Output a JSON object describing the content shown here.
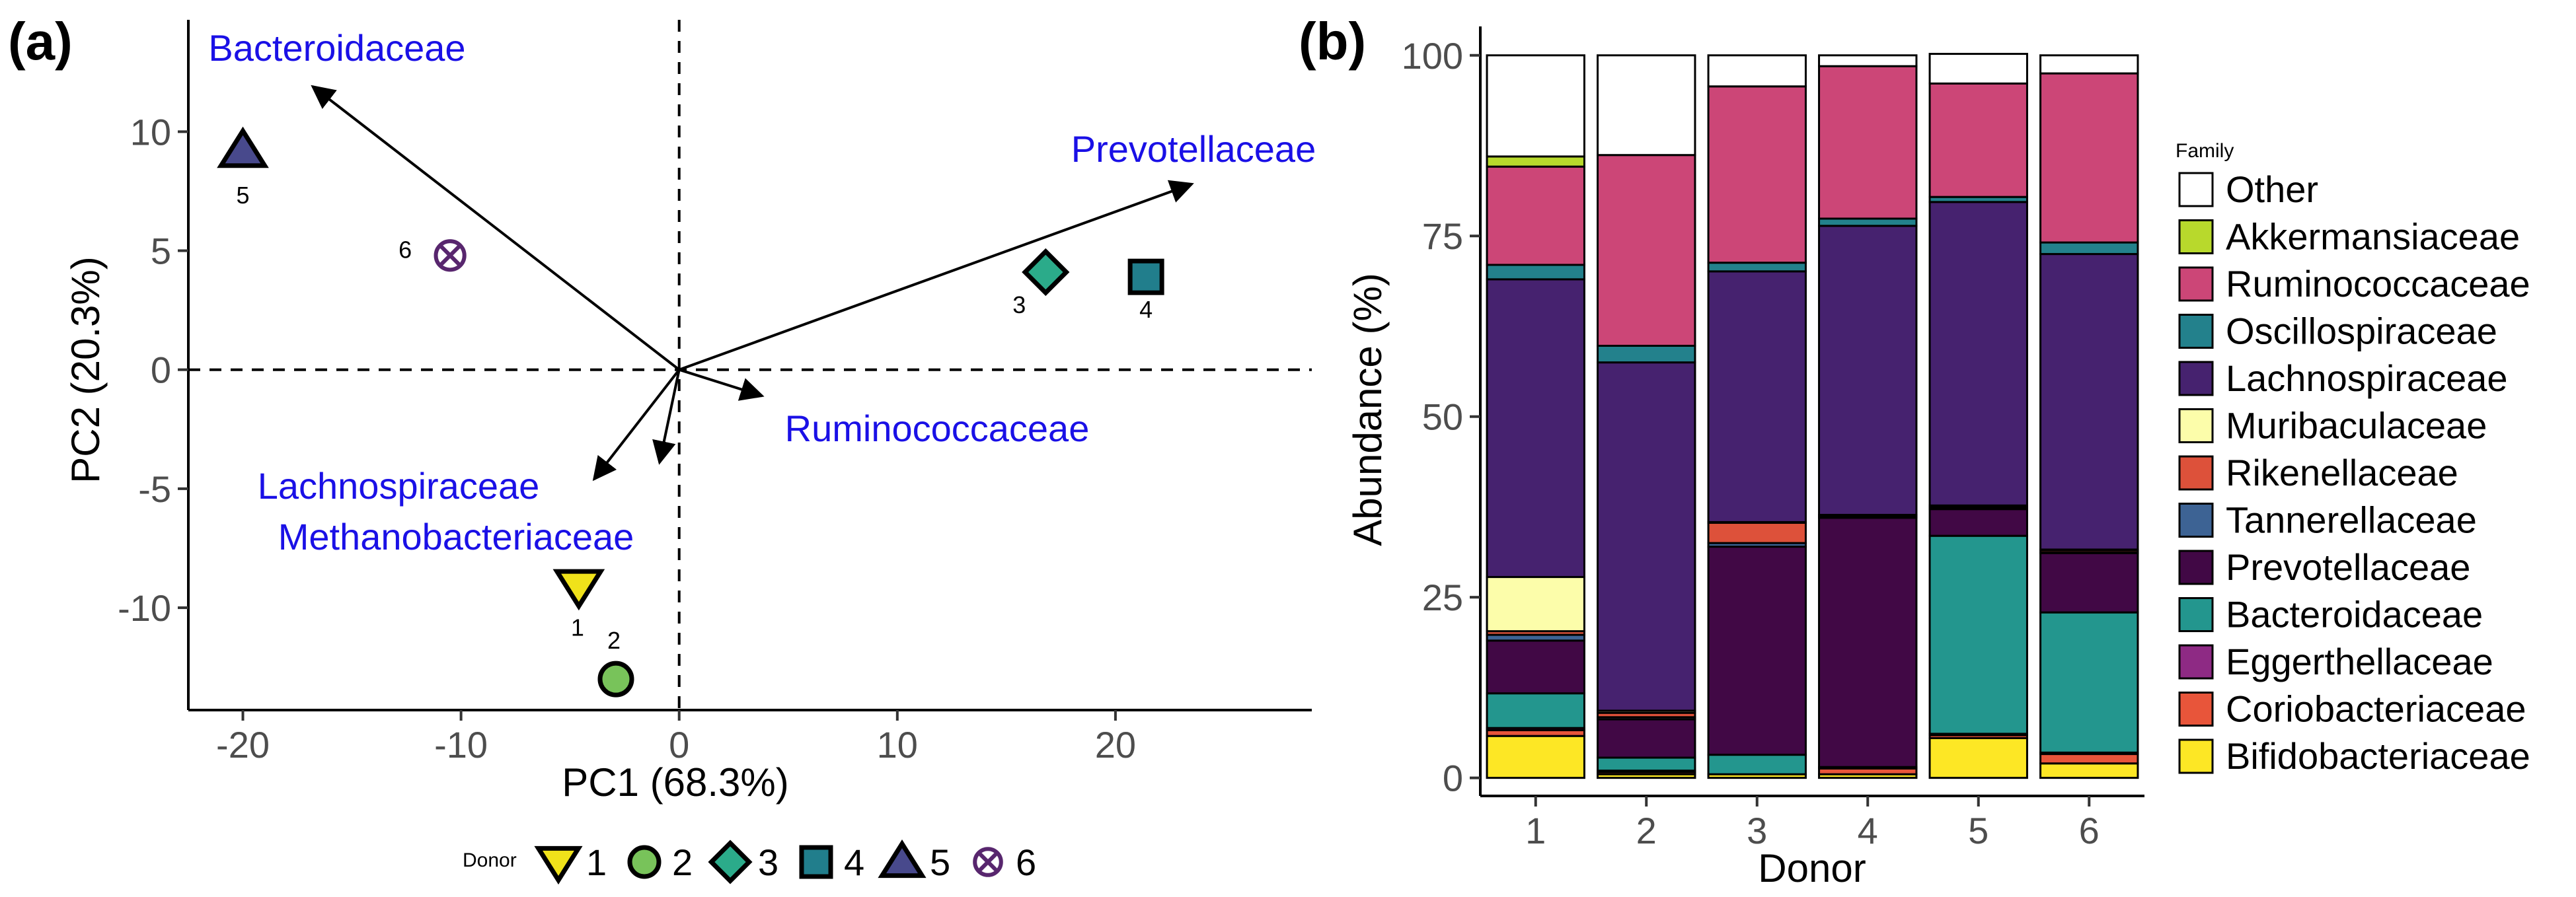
{
  "chart_data": [
    {
      "type": "scatter",
      "panel_label": "(a)",
      "xlabel": "PC1 (68.3%)",
      "ylabel": "PC2 (20.3%)",
      "xlim": [
        -22.5,
        29
      ],
      "ylim": [
        -14.3,
        14.7
      ],
      "xticks": [
        -20,
        -10,
        0,
        10,
        20
      ],
      "yticks": [
        -10,
        -5,
        0,
        5,
        10
      ],
      "xtick_labels": [
        "-20",
        "-10",
        "0",
        "10",
        "20"
      ],
      "ytick_labels": [
        "-10",
        "-5",
        "0",
        "5",
        "10"
      ],
      "reference_lines": {
        "x": 0,
        "y": 0,
        "style": "dashed"
      },
      "points": [
        {
          "donor": "1",
          "x": -4.6,
          "y": -9.1,
          "shape": "triangle-down",
          "color": "#f0e21a"
        },
        {
          "donor": "2",
          "x": -2.9,
          "y": -13.0,
          "shape": "circle",
          "color": "#78c35a"
        },
        {
          "donor": "3",
          "x": 16.8,
          "y": 4.1,
          "shape": "diamond",
          "color": "#2bab8a"
        },
        {
          "donor": "4",
          "x": 21.4,
          "y": 3.9,
          "shape": "square",
          "color": "#217e8c"
        },
        {
          "donor": "5",
          "x": -20.0,
          "y": 9.2,
          "shape": "triangle-up",
          "color": "#48498c"
        },
        {
          "donor": "6",
          "x": -10.5,
          "y": 4.8,
          "shape": "circle-cross",
          "color": "#58266e"
        }
      ],
      "loadings": [
        {
          "name": "Bacteroidaceae",
          "x": -16.8,
          "y": 11.9
        },
        {
          "name": "Prevotellaceae",
          "x": 23.5,
          "y": 7.8
        },
        {
          "name": "Ruminococcaceae",
          "x": 3.8,
          "y": -1.1
        },
        {
          "name": "Lachnospiraceae",
          "x": -3.9,
          "y": -4.6
        },
        {
          "name": "Methanobacteriaceae",
          "x": -0.9,
          "y": -3.9
        }
      ],
      "legend": {
        "title": "Donor",
        "placement": "bottom",
        "labels": [
          "1",
          "2",
          "3",
          "4",
          "5",
          "6"
        ]
      }
    },
    {
      "type": "bar",
      "stacked": true,
      "panel_label": "(b)",
      "xlabel": "Donor",
      "ylabel": "Abundance (%)",
      "categories": [
        "1",
        "2",
        "3",
        "4",
        "5",
        "6"
      ],
      "ylim": [
        -2.5,
        104
      ],
      "yticks": [
        0,
        25,
        50,
        75,
        100
      ],
      "ytick_labels": [
        "0",
        "25",
        "50",
        "75",
        "100"
      ],
      "series": [
        {
          "name": "Bifidobacteriaceae",
          "color": "#fde725",
          "values": [
            5.8,
            0.5,
            0.5,
            0.5,
            5.5,
            2.0
          ]
        },
        {
          "name": "Coriobacteriaceae",
          "color": "#e8553a",
          "values": [
            0.8,
            0.3,
            0.0,
            0.8,
            0.4,
            1.3
          ]
        },
        {
          "name": "Eggerthellaceae",
          "color": "#8e2a84",
          "values": [
            0.3,
            0.2,
            0.0,
            0.1,
            0.2,
            0.2
          ]
        },
        {
          "name": "Bacteroidaceae",
          "color": "#23968e",
          "values": [
            4.8,
            1.8,
            2.7,
            0.1,
            27.4,
            19.4
          ]
        },
        {
          "name": "Prevotellaceae",
          "color": "#410845",
          "values": [
            7.3,
            5.3,
            28.8,
            34.5,
            3.7,
            8.2
          ]
        },
        {
          "name": "Tannerellaceae",
          "color": "#3d6394",
          "values": [
            0.8,
            0.3,
            0.5,
            0.2,
            0.2,
            0.1
          ]
        },
        {
          "name": "Rikenellaceae",
          "color": "#dd513a",
          "values": [
            0.5,
            0.6,
            2.8,
            0.1,
            0.1,
            0.3
          ]
        },
        {
          "name": "Muribaculaceae",
          "color": "#fcfdaa",
          "values": [
            7.5,
            0.3,
            0.1,
            0.1,
            0.2,
            0.1
          ]
        },
        {
          "name": "Lachnospiraceae",
          "color": "#46226f",
          "values": [
            41.2,
            48.2,
            34.7,
            40.0,
            42.0,
            40.9
          ]
        },
        {
          "name": "Oscillospiraceae",
          "color": "#23818c",
          "values": [
            2.0,
            2.3,
            1.2,
            1.0,
            0.7,
            1.6
          ]
        },
        {
          "name": "Ruminococcaceae",
          "color": "#cc4677",
          "values": [
            13.6,
            26.4,
            24.4,
            21.1,
            15.7,
            23.4
          ]
        },
        {
          "name": "Akkermansiaceae",
          "color": "#b8d92c",
          "values": [
            1.4,
            0.0,
            0.0,
            0.0,
            0.0,
            0.0
          ]
        },
        {
          "name": "Other",
          "color": "#ffffff",
          "values": [
            14.0,
            13.8,
            4.3,
            1.5,
            4.1,
            2.5
          ]
        }
      ],
      "legend": {
        "title": "Family",
        "placement": "right",
        "labels": [
          "Other",
          "Akkermansiaceae",
          "Ruminococcaceae",
          "Oscillospiraceae",
          "Lachnospiraceae",
          "Muribaculaceae",
          "Rikenellaceae",
          "Tannerellaceae",
          "Prevotellaceae",
          "Bacteroidaceae",
          "Eggerthellaceae",
          "Coriobacteriaceae",
          "Bifidobacteriaceae"
        ]
      }
    }
  ]
}
